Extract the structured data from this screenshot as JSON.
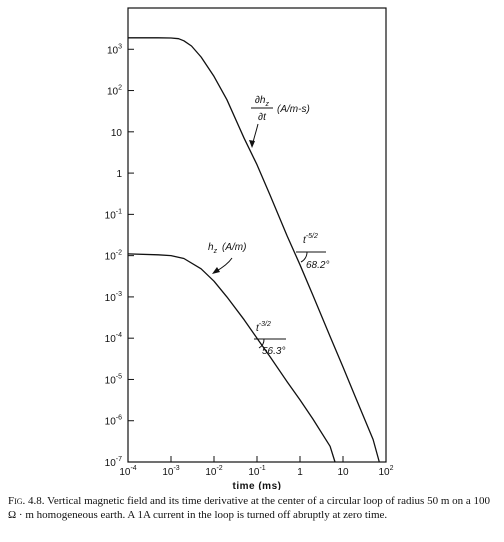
{
  "chart_data": {
    "type": "line",
    "x_scale": "log",
    "y_scale": "log",
    "xlabel": "time (ms)",
    "xlim": [
      0.0001,
      100
    ],
    "ylim": [
      1e-07,
      10000
    ],
    "x_ticks": [
      {
        "base": "10",
        "exp": "-4",
        "value": 0.0001
      },
      {
        "base": "10",
        "exp": "-3",
        "value": 0.001
      },
      {
        "base": "10",
        "exp": "-2",
        "value": 0.01
      },
      {
        "base": "10",
        "exp": "-1",
        "value": 0.1
      },
      {
        "base": "1",
        "exp": "",
        "value": 1
      },
      {
        "base": "10",
        "exp": "",
        "value": 10
      },
      {
        "base": "10",
        "exp": "2",
        "value": 100
      }
    ],
    "y_ticks": [
      {
        "base": "10",
        "exp": "3",
        "value": 1000
      },
      {
        "base": "10",
        "exp": "2",
        "value": 100
      },
      {
        "base": "10",
        "exp": "",
        "value": 10
      },
      {
        "base": "1",
        "exp": "",
        "value": 1
      },
      {
        "base": "10",
        "exp": "-1",
        "value": 0.1
      },
      {
        "base": "10",
        "exp": "-2",
        "value": 0.01
      },
      {
        "base": "10",
        "exp": "-3",
        "value": 0.001
      },
      {
        "base": "10",
        "exp": "-4",
        "value": 0.0001
      },
      {
        "base": "10",
        "exp": "-5",
        "value": 1e-05
      },
      {
        "base": "10",
        "exp": "-6",
        "value": 1e-06
      },
      {
        "base": "10",
        "exp": "-7",
        "value": 1e-07
      }
    ],
    "grid": false,
    "series": [
      {
        "label_parts": {
          "main": "∂h",
          "sub": "z",
          "den": "∂t",
          "unit": "(A/m-s)"
        },
        "x": [
          0.0001,
          0.0005,
          0.001,
          0.0015,
          0.002,
          0.003,
          0.005,
          0.01,
          0.02,
          0.05,
          0.1,
          0.2,
          0.5,
          1,
          2,
          5,
          10,
          20,
          50,
          70
        ],
        "y": [
          1900,
          1900,
          1880,
          1800,
          1600,
          1200,
          650,
          220,
          60,
          7,
          1.6,
          0.3,
          0.03,
          0.006,
          0.0011,
          0.00011,
          2e-05,
          3.5e-06,
          3.5e-07,
          1e-07
        ]
      },
      {
        "label_parts": {
          "main": "h",
          "sub": "z",
          "unit": "(A/m)"
        },
        "x": [
          0.0001,
          0.0005,
          0.001,
          0.002,
          0.005,
          0.01,
          0.02,
          0.05,
          0.1,
          0.2,
          0.5,
          1,
          2,
          5,
          6.5
        ],
        "y": [
          0.011,
          0.0105,
          0.01,
          0.0085,
          0.0048,
          0.0024,
          0.001,
          0.00028,
          0.0001,
          3.6e-05,
          8.8e-06,
          3.2e-06,
          1.1e-06,
          2.4e-07,
          1e-07
        ]
      }
    ],
    "annotations": [
      {
        "base": "t",
        "exp": "-5/2",
        "angle": "68.2°"
      },
      {
        "base": "t",
        "exp": "-3/2",
        "angle": "56.3°"
      }
    ]
  },
  "caption": {
    "label": "Fig. 4.8.",
    "text": "Vertical magnetic field and its time derivative at the center of a circular loop of radius 50 m on a 100 Ω · m homogeneous earth. A 1A current in the loop is turned off abruptly at zero time."
  }
}
